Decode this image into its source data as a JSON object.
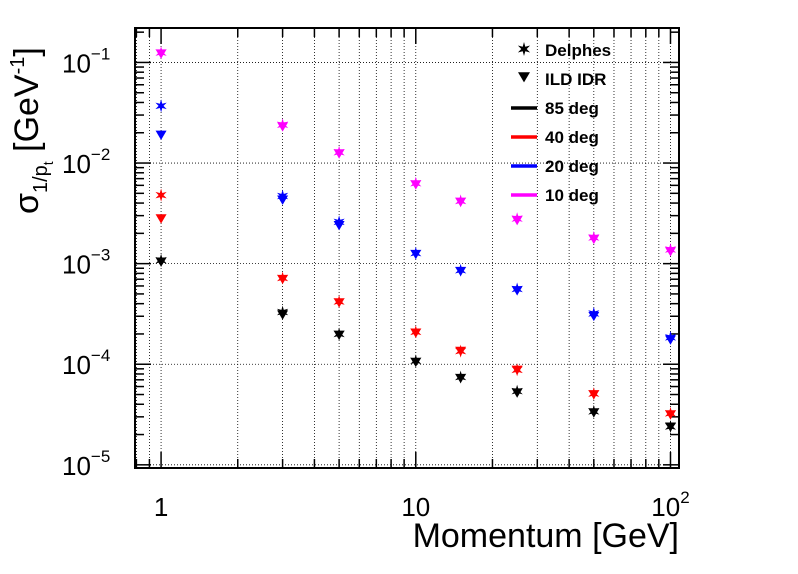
{
  "chart_data": {
    "type": "scatter",
    "xlabel": "Momentum [GeV]",
    "ylabel": "σ1/pt [GeV-1]",
    "x_scale": "log",
    "y_scale": "log",
    "xlim": [
      0.79,
      108
    ],
    "ylim": [
      9.3e-06,
      0.22
    ],
    "grid": true,
    "legend_position": "top-right",
    "x_tick_labels": [
      {
        "value": 1,
        "base": "1",
        "exp": ""
      },
      {
        "value": 10,
        "base": "10",
        "exp": ""
      },
      {
        "value": 100,
        "base": "10",
        "exp": "2"
      }
    ],
    "y_tick_labels": [
      {
        "value": 1e-05,
        "base": "10",
        "exp": "−5"
      },
      {
        "value": 0.0001,
        "base": "10",
        "exp": "−4"
      },
      {
        "value": 0.001,
        "base": "10",
        "exp": "−3"
      },
      {
        "value": 0.01,
        "base": "10",
        "exp": "−2"
      },
      {
        "value": 0.1,
        "base": "10",
        "exp": "−1"
      }
    ],
    "legend": {
      "markers": [
        {
          "label": "Delphes",
          "marker": "star"
        },
        {
          "label": "ILD IDR",
          "marker": "triangle-down"
        }
      ],
      "lines": [
        {
          "label": "85 deg",
          "color": "#000000"
        },
        {
          "label": "40 deg",
          "color": "#ff0000"
        },
        {
          "label": "20 deg",
          "color": "#0000ff"
        },
        {
          "label": "10 deg",
          "color": "#ff00ff"
        }
      ]
    },
    "x": [
      1,
      3,
      5,
      10,
      15,
      25,
      50,
      100
    ],
    "series": [
      {
        "angle": "85 deg",
        "color": "#000000",
        "delphes": [
          0.00108,
          0.00033,
          0.0002,
          0.000108,
          7.45e-05,
          5.4e-05,
          3.4e-05,
          2.4e-05
        ],
        "ild_idr": [
          0.00104,
          0.00031,
          0.000195,
          0.000105,
          7.25e-05,
          5.2e-05,
          3.3e-05,
          2.38e-05
        ]
      },
      {
        "angle": "40 deg",
        "color": "#ff0000",
        "delphes": [
          0.0048,
          0.00072,
          0.00042,
          0.00021,
          0.000135,
          8.8e-05,
          5.1e-05,
          3.25e-05
        ],
        "ild_idr": [
          0.0028,
          0.0007,
          0.00041,
          0.000205,
          0.000135,
          8.75e-05,
          5e-05,
          3.15e-05
        ]
      },
      {
        "angle": "20 deg",
        "color": "#0000ff",
        "delphes": [
          0.037,
          0.0047,
          0.0026,
          0.00127,
          0.00086,
          0.00056,
          0.00032,
          0.000185
        ],
        "ild_idr": [
          0.019,
          0.0043,
          0.0024,
          0.00124,
          0.00084,
          0.00054,
          0.0003,
          0.000175
        ]
      },
      {
        "angle": "10 deg",
        "color": "#ff00ff",
        "delphes": [
          0.125,
          0.024,
          0.0128,
          0.0063,
          0.0042,
          0.0028,
          0.00182,
          0.00138
        ],
        "ild_idr": [
          0.122,
          0.023,
          0.0124,
          0.0061,
          0.0041,
          0.0027,
          0.00175,
          0.00132
        ]
      }
    ]
  }
}
